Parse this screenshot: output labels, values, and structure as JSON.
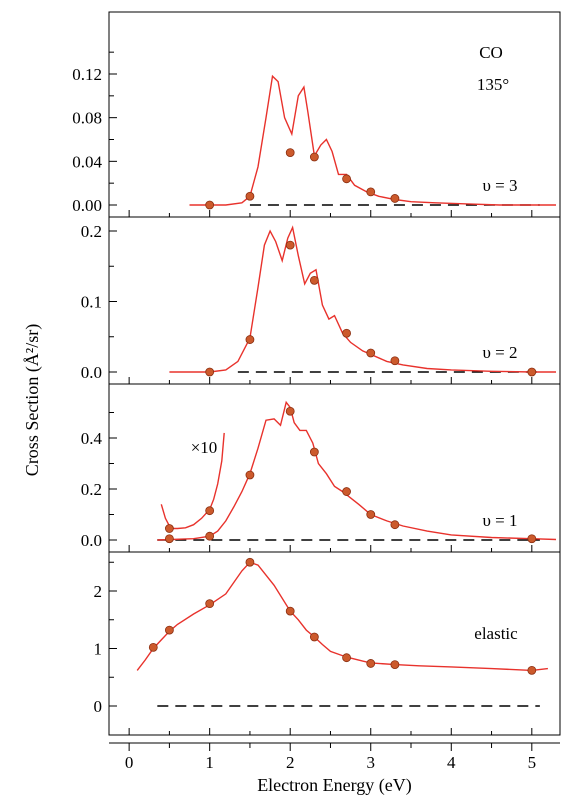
{
  "chart_data": {
    "type": "line",
    "xlabel": "Electron Energy (eV)",
    "ylabel": "Cross Section (Å²/sr)",
    "xlim": [
      -0.25,
      5.35
    ],
    "xticks": [
      "0",
      "1",
      "2",
      "3",
      "4",
      "5"
    ],
    "colors": {
      "curve": "#e8322c",
      "points": "#cc5a2c"
    },
    "panels": [
      {
        "id": "v3",
        "label": "υ = 3",
        "annotations": [
          "CO",
          "135°"
        ],
        "ylim": [
          0,
          0.148
        ],
        "yticks": [
          "0.00",
          "0.04",
          "0.08",
          "0.12"
        ],
        "curve_x": [
          0.75,
          1.2,
          1.4,
          1.5,
          1.6,
          1.7,
          1.78,
          1.85,
          1.93,
          2.02,
          2.1,
          2.17,
          2.22,
          2.3,
          2.38,
          2.45,
          2.52,
          2.6,
          2.7,
          2.8,
          2.95,
          3.1,
          3.3,
          3.5,
          3.8,
          4.2,
          4.6,
          5.0,
          5.3
        ],
        "curve_y": [
          0.0,
          0.0,
          0.002,
          0.008,
          0.035,
          0.08,
          0.118,
          0.113,
          0.08,
          0.065,
          0.1,
          0.108,
          0.085,
          0.045,
          0.055,
          0.06,
          0.049,
          0.028,
          0.028,
          0.018,
          0.012,
          0.008,
          0.005,
          0.003,
          0.002,
          0.001,
          0.0,
          0.0,
          0.0
        ],
        "points_x": [
          1.0,
          1.5,
          2.0,
          2.3,
          2.7,
          3.0,
          3.3
        ],
        "points_y": [
          0.0,
          0.008,
          0.048,
          0.044,
          0.024,
          0.012,
          0.006
        ]
      },
      {
        "id": "v2",
        "label": "υ = 2",
        "annotations": [],
        "ylim": [
          0,
          0.225
        ],
        "yticks": [
          "0.0",
          "0.1",
          "0.2"
        ],
        "curve_x": [
          0.5,
          1.0,
          1.2,
          1.35,
          1.5,
          1.6,
          1.68,
          1.75,
          1.82,
          1.9,
          1.97,
          2.03,
          2.1,
          2.18,
          2.25,
          2.32,
          2.4,
          2.48,
          2.55,
          2.65,
          2.75,
          2.9,
          3.0,
          3.2,
          3.4,
          3.7,
          4.0,
          4.5,
          5.0,
          5.3
        ],
        "curve_y": [
          0.0,
          0.0,
          0.003,
          0.015,
          0.048,
          0.12,
          0.18,
          0.2,
          0.185,
          0.158,
          0.19,
          0.205,
          0.165,
          0.125,
          0.14,
          0.145,
          0.095,
          0.075,
          0.08,
          0.055,
          0.042,
          0.03,
          0.025,
          0.015,
          0.01,
          0.005,
          0.003,
          0.001,
          0.0,
          0.0
        ],
        "points_x": [
          1.0,
          1.5,
          2.0,
          2.3,
          2.7,
          3.0,
          3.3,
          5.0
        ],
        "points_y": [
          0.0,
          0.046,
          0.18,
          0.13,
          0.055,
          0.027,
          0.016,
          0.0
        ]
      },
      {
        "id": "v1",
        "label": "υ = 1",
        "annotations": [
          "×10"
        ],
        "ylim": [
          0,
          0.58
        ],
        "yticks": [
          "0.0",
          "0.2",
          "0.4"
        ],
        "curve_x": [
          0.35,
          0.8,
          1.0,
          1.1,
          1.2,
          1.3,
          1.4,
          1.5,
          1.6,
          1.7,
          1.8,
          1.88,
          1.95,
          2.0,
          2.05,
          2.12,
          2.2,
          2.28,
          2.35,
          2.45,
          2.55,
          2.65,
          2.75,
          2.85,
          3.0,
          3.2,
          3.4,
          3.7,
          4.0,
          4.5,
          5.0,
          5.3
        ],
        "curve_y": [
          0.0,
          0.005,
          0.015,
          0.035,
          0.075,
          0.13,
          0.19,
          0.26,
          0.36,
          0.47,
          0.475,
          0.45,
          0.54,
          0.52,
          0.46,
          0.43,
          0.43,
          0.38,
          0.3,
          0.26,
          0.21,
          0.19,
          0.165,
          0.14,
          0.1,
          0.075,
          0.055,
          0.035,
          0.02,
          0.01,
          0.005,
          0.002
        ],
        "points_x": [
          0.5,
          1.0,
          1.5,
          2.0,
          2.3,
          2.7,
          3.0,
          3.3,
          5.0
        ],
        "points_y": [
          0.005,
          0.015,
          0.255,
          0.505,
          0.345,
          0.19,
          0.1,
          0.06,
          0.005
        ],
        "inset_x": [
          0.4,
          0.45,
          0.5,
          0.55,
          0.6,
          0.7,
          0.8,
          0.9,
          1.0,
          1.05,
          1.1,
          1.15,
          1.18
        ],
        "inset_y": [
          0.14,
          0.085,
          0.055,
          0.045,
          0.045,
          0.048,
          0.06,
          0.085,
          0.12,
          0.16,
          0.22,
          0.31,
          0.42
        ],
        "inset_points_x": [
          0.5,
          1.0
        ],
        "inset_points_y": [
          0.045,
          0.115
        ]
      },
      {
        "id": "elastic",
        "label": "elastic",
        "annotations": [],
        "ylim": [
          -0.15,
          2.72
        ],
        "yticks": [
          "0",
          "1",
          "2"
        ],
        "curve_x": [
          0.1,
          0.2,
          0.3,
          0.4,
          0.5,
          0.6,
          0.8,
          1.0,
          1.2,
          1.4,
          1.5,
          1.6,
          1.8,
          2.0,
          2.1,
          2.2,
          2.3,
          2.4,
          2.5,
          2.7,
          2.9,
          3.0,
          3.3,
          3.6,
          4.0,
          4.5,
          5.0,
          5.2
        ],
        "curve_y": [
          0.62,
          0.8,
          1.0,
          1.15,
          1.3,
          1.42,
          1.6,
          1.76,
          1.95,
          2.35,
          2.5,
          2.45,
          2.1,
          1.65,
          1.5,
          1.32,
          1.2,
          1.07,
          0.95,
          0.85,
          0.78,
          0.75,
          0.72,
          0.7,
          0.68,
          0.65,
          0.62,
          0.65
        ],
        "points_x": [
          0.3,
          0.5,
          1.0,
          1.5,
          2.0,
          2.3,
          2.7,
          3.0,
          3.3,
          5.0
        ],
        "points_y": [
          1.02,
          1.32,
          1.78,
          2.5,
          1.65,
          1.2,
          0.84,
          0.74,
          0.72,
          0.62
        ]
      }
    ]
  }
}
